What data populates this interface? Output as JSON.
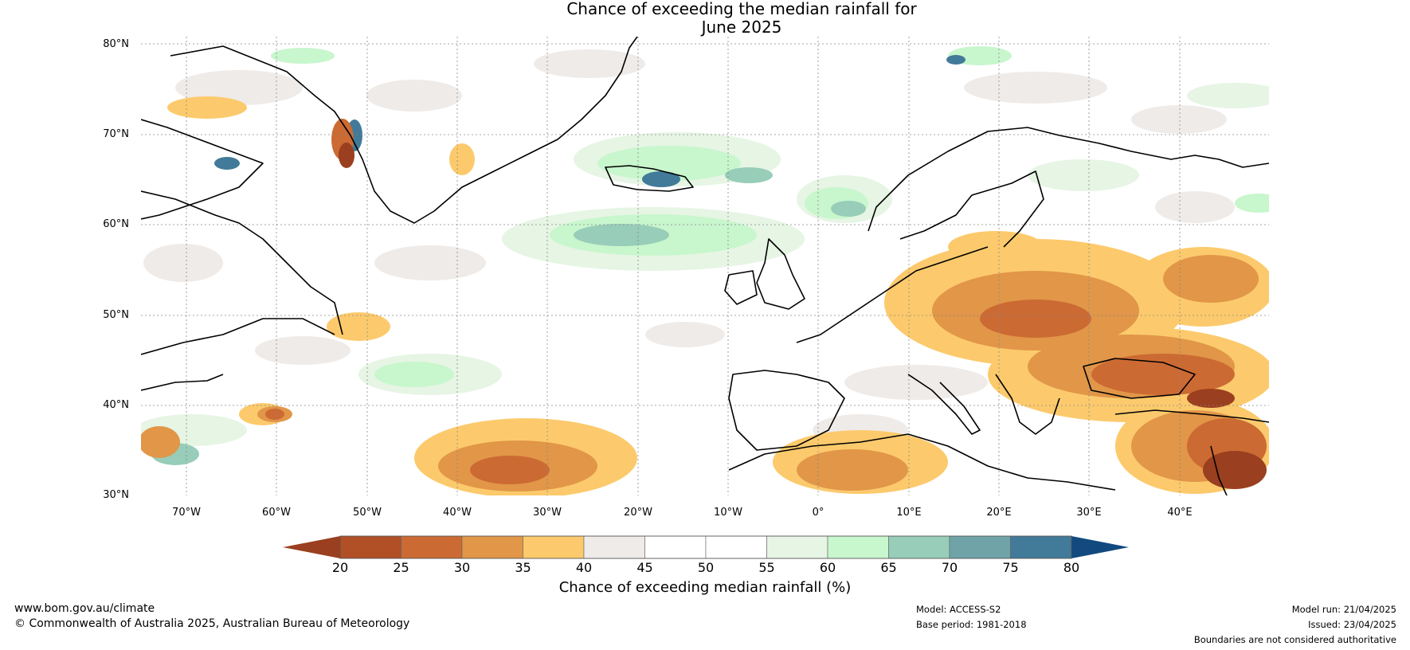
{
  "title": {
    "line1": "Chance of exceeding the median rainfall for",
    "line2": "June 2025"
  },
  "map": {
    "lat_labels": [
      "80°N",
      "70°N",
      "60°N",
      "50°N",
      "40°N",
      "30°N"
    ],
    "lon_labels": [
      "70°W",
      "60°W",
      "50°W",
      "40°W",
      "30°W",
      "20°W",
      "10°W",
      "0°",
      "10°E",
      "20°E",
      "30°E",
      "40°E"
    ],
    "extent": {
      "lon_min": -75,
      "lon_max": 50,
      "lat_min": 30,
      "lat_max": 81
    },
    "grid": true,
    "land_background_color": "#ffffff"
  },
  "colorbar": {
    "ticks": [
      "20",
      "25",
      "30",
      "35",
      "40",
      "45",
      "50",
      "55",
      "60",
      "65",
      "70",
      "75",
      "80"
    ],
    "low_extend_color": "#9a3f1f",
    "high_extend_color": "#12497f",
    "colors": [
      "#b14f27",
      "#cc6a33",
      "#e19648",
      "#fcca6c",
      "#efebe8",
      "#ffffff",
      "#ffffff",
      "#e6f5e4",
      "#c8f6cd",
      "#97cdb9",
      "#6fa3a8",
      "#427a99"
    ],
    "title": "Chance of exceeding median rainfall (%)"
  },
  "footer": {
    "website": "www.bom.gov.au/climate",
    "copyright": "© Commonwealth of Australia 2025, Australian Bureau of Meteorology",
    "model": "Model: ACCESS-S2",
    "base_period": "Base period: 1981-2018",
    "model_run": "Model run: 21/04/2025",
    "issued": "Issued: 23/04/2025",
    "boundaries": "Boundaries are not considered authoritative"
  }
}
